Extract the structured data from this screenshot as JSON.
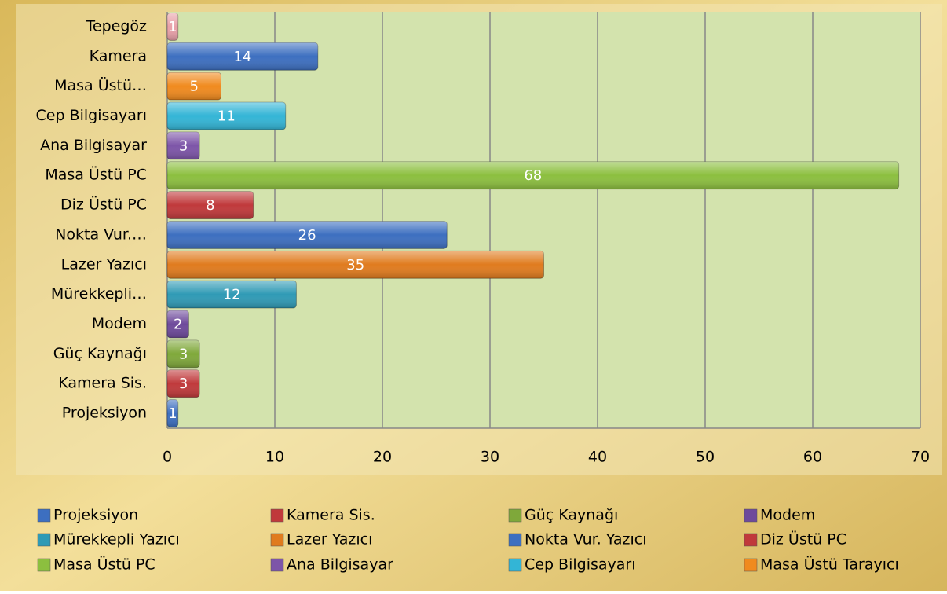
{
  "chart_data": {
    "type": "bar",
    "orientation": "horizontal",
    "categories": [
      "Projeksiyon",
      "Kamera Sis.",
      "Güç Kaynağı",
      "Modem",
      "Mürekkepli…",
      "Lazer Yazıcı",
      "Nokta Vur.…",
      "Diz Üstü PC",
      "Masa Üstü PC",
      "Ana Bilgisayar",
      "Cep Bilgisayarı",
      "Masa Üstü…",
      "Kamera",
      "Tepegöz"
    ],
    "values": [
      1,
      3,
      3,
      2,
      12,
      35,
      26,
      8,
      68,
      3,
      11,
      5,
      14,
      1
    ],
    "colors": [
      "#3d6fc0",
      "#c0393b",
      "#7fa83a",
      "#6e4a9b",
      "#2f9ab5",
      "#e07b1e",
      "#3d6fc0",
      "#c0393b",
      "#8cbf3f",
      "#7d55a8",
      "#33b5d6",
      "#f08a1e",
      "#3d6fc0",
      "#e8a0a8"
    ],
    "legend": [
      "Projeksiyon",
      "Kamera Sis.",
      "Güç Kaynağı",
      "Modem",
      "Mürekkepli Yazıcı",
      "Lazer Yazıcı",
      "Nokta Vur. Yazıcı",
      "Diz Üstü PC",
      "Masa Üstü PC",
      "Ana Bilgisayar",
      "Cep Bilgisayarı",
      "Masa Üstü Tarayıcı"
    ],
    "xlim": [
      0,
      70
    ],
    "xticks": [
      0,
      10,
      20,
      30,
      40,
      50,
      60,
      70
    ],
    "grid": true
  }
}
